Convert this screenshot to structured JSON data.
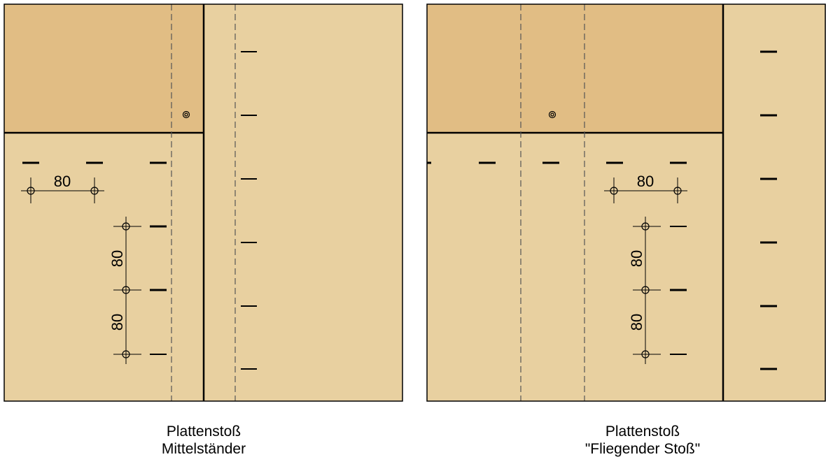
{
  "panels": [
    {
      "id": "left",
      "caption_line1": "Plattenstoß",
      "caption_line2": "Mittelständer",
      "dim_horizontal": "80",
      "dim_vertical_upper": "80",
      "dim_vertical_lower": "80"
    },
    {
      "id": "right",
      "caption_line1": "Plattenstoß",
      "caption_line2": "\"Fliegender Stoß\"",
      "dim_horizontal": "80",
      "dim_vertical_upper": "80",
      "dim_vertical_lower": "80"
    }
  ],
  "colors": {
    "panel_light": "#e8d0a0",
    "panel_dark": "#e1bd84",
    "lines": "#000000"
  },
  "icons": [
    "screw-icon",
    "drill-hole-icon"
  ]
}
